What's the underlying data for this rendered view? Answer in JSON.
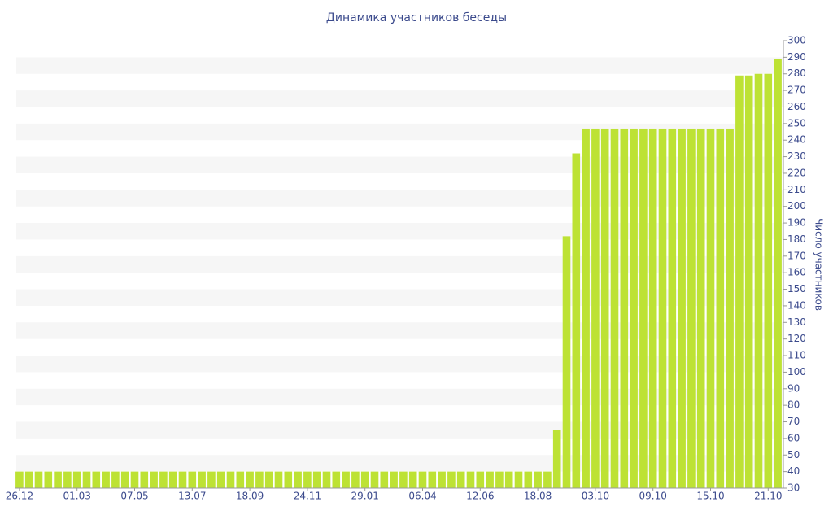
{
  "chart_data": {
    "type": "bar",
    "title": "Динамика участников беседы",
    "y_label": "Число участников",
    "categories": [
      "26.12",
      null,
      null,
      null,
      null,
      null,
      "01.03",
      null,
      null,
      null,
      null,
      null,
      "07.05",
      null,
      null,
      null,
      null,
      null,
      "13.07",
      null,
      null,
      null,
      null,
      null,
      "18.09",
      null,
      null,
      null,
      null,
      null,
      "24.11",
      null,
      null,
      null,
      null,
      null,
      "29.01",
      null,
      null,
      null,
      null,
      null,
      "06.04",
      null,
      null,
      null,
      null,
      null,
      "12.06",
      null,
      null,
      null,
      null,
      null,
      "18.08",
      null,
      null,
      null,
      null,
      null,
      "03.10",
      null,
      null,
      null,
      null,
      null,
      "09.10",
      null,
      null,
      null,
      null,
      null,
      "15.10",
      null,
      null,
      null,
      null,
      null,
      "21.10",
      null
    ],
    "values": [
      40,
      40,
      40,
      40,
      40,
      40,
      40,
      40,
      40,
      40,
      40,
      40,
      40,
      40,
      40,
      40,
      40,
      40,
      40,
      40,
      40,
      40,
      40,
      40,
      40,
      40,
      40,
      40,
      40,
      40,
      40,
      40,
      40,
      40,
      40,
      40,
      40,
      40,
      40,
      40,
      40,
      40,
      40,
      40,
      40,
      40,
      40,
      40,
      40,
      40,
      40,
      40,
      40,
      40,
      40,
      40,
      65,
      182,
      232,
      247,
      247,
      247,
      247,
      247,
      247,
      247,
      247,
      247,
      247,
      247,
      247,
      247,
      247,
      247,
      247,
      279,
      279,
      280,
      280,
      289
    ],
    "color": "#bde234",
    "ylim": [
      30,
      300
    ],
    "yticks": [
      30,
      40,
      50,
      60,
      70,
      80,
      90,
      100,
      110,
      120,
      130,
      140,
      150,
      160,
      170,
      180,
      190,
      200,
      210,
      220,
      230,
      240,
      250,
      260,
      270,
      280,
      290,
      300
    ],
    "grid": "bands",
    "y_axis_side": "right"
  }
}
